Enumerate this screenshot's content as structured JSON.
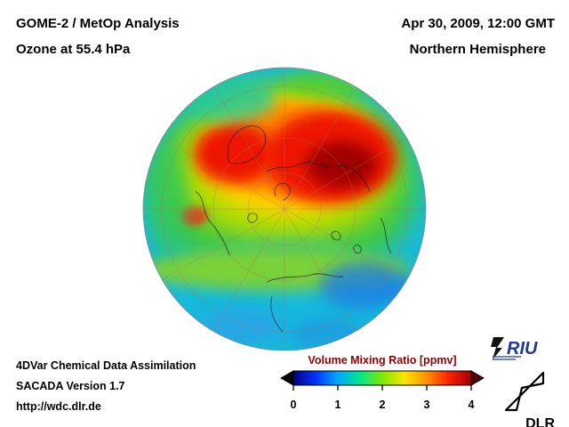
{
  "header": {
    "title_line1": "GOME-2 / MetOp Analysis",
    "title_line2": "Ozone at 55.4 hPa",
    "datetime": "Apr 30, 2009, 12:00 GMT",
    "region": "Northern Hemisphere"
  },
  "footer": {
    "line1": "4DVar Chemical Data Assimilation",
    "line2": "SACADA Version 1.7",
    "line3": "http://wdc.dlr.de"
  },
  "colorbar": {
    "title": "Volume Mixing Ratio [ppmv]",
    "title_color": "#8b0000",
    "min": 0,
    "max": 4,
    "ticks": [
      "0",
      "1",
      "2",
      "3",
      "4"
    ],
    "colors": [
      "#000080",
      "#0033ff",
      "#00a8ff",
      "#00e68c",
      "#7fe800",
      "#ffe400",
      "#ff9000",
      "#ff2000",
      "#a00000"
    ],
    "under_color": "#000000",
    "over_color": "#500000"
  },
  "logos": {
    "riu": "RIU",
    "dlr": "DLR"
  },
  "chart_data": {
    "type": "heatmap",
    "title": "GOME-2 / MetOp Analysis - Ozone at 55.4 hPa",
    "projection": "orthographic, North Pole centered, Northern Hemisphere",
    "variable": "Ozone volume mixing ratio",
    "units": "ppmv",
    "scale_range": [
      0,
      4
    ],
    "legend_position": "bottom center",
    "regions": [
      {
        "area": "Arctic Russia / Siberia",
        "value_ppmv": 3.8,
        "color": "dark red"
      },
      {
        "area": "Greenland / Canadian Arctic",
        "value_ppmv": 3.4,
        "color": "red"
      },
      {
        "area": "polar cap surrounding maxima",
        "value_ppmv": 2.8,
        "color": "orange-yellow"
      },
      {
        "area": "mid-latitude ring",
        "value_ppmv": 2.0,
        "color": "green-yellow"
      },
      {
        "area": "subtropics toward limb",
        "value_ppmv": 1.4,
        "color": "cyan"
      },
      {
        "area": "low-latitude patches near limb (Atlantic / Pacific)",
        "value_ppmv": 1.0,
        "color": "blue"
      }
    ]
  }
}
